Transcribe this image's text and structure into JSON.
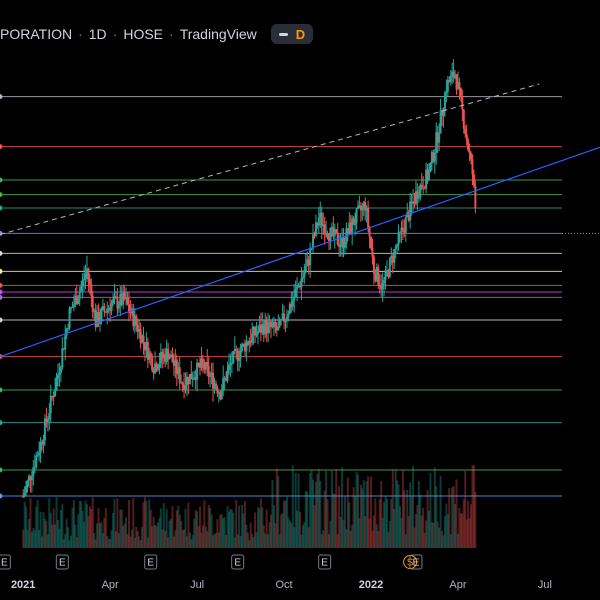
{
  "header": {
    "symbol": "PORATION",
    "interval": "1D",
    "exchange": "HOSE",
    "source": "TradingView",
    "badge_label": "D"
  },
  "colors": {
    "background": "#000000",
    "up": "#26a69a",
    "down": "#ef5350",
    "trendline": "#2962ff"
  },
  "chart_data": {
    "type": "candlestick",
    "title": "",
    "x_ticks": [
      {
        "label": "2021",
        "bold": true,
        "month_index": 0
      },
      {
        "label": "Apr",
        "bold": false,
        "month_index": 3
      },
      {
        "label": "Jul",
        "bold": false,
        "month_index": 6
      },
      {
        "label": "Oct",
        "bold": false,
        "month_index": 9
      },
      {
        "label": "2022",
        "bold": true,
        "month_index": 12
      },
      {
        "label": "Apr",
        "bold": false,
        "month_index": 15
      },
      {
        "label": "Jul",
        "bold": false,
        "month_index": 18
      }
    ],
    "x_range_months": [
      -0.8,
      19.9
    ],
    "price_range": [
      0,
      100
    ],
    "price_path": [
      [
        0,
        10
      ],
      [
        0.6,
        22
      ],
      [
        1.2,
        38
      ],
      [
        1.6,
        52
      ],
      [
        2.0,
        58
      ],
      [
        2.2,
        62
      ],
      [
        2.5,
        50
      ],
      [
        3.0,
        54
      ],
      [
        3.5,
        55
      ],
      [
        4.0,
        48
      ],
      [
        4.5,
        40
      ],
      [
        5.0,
        43
      ],
      [
        5.5,
        36
      ],
      [
        6.2,
        40
      ],
      [
        6.8,
        34
      ],
      [
        7.2,
        41
      ],
      [
        7.8,
        46
      ],
      [
        8.3,
        49
      ],
      [
        8.8,
        48
      ],
      [
        9.3,
        55
      ],
      [
        9.8,
        63
      ],
      [
        10.2,
        74
      ],
      [
        10.6,
        70
      ],
      [
        11.0,
        68
      ],
      [
        11.4,
        73
      ],
      [
        11.8,
        77
      ],
      [
        12.1,
        62
      ],
      [
        12.4,
        58
      ],
      [
        12.8,
        66
      ],
      [
        13.2,
        73
      ],
      [
        13.6,
        80
      ],
      [
        14.0,
        84
      ],
      [
        14.3,
        93
      ],
      [
        14.6,
        104
      ],
      [
        14.9,
        107
      ],
      [
        15.1,
        100
      ],
      [
        15.3,
        92
      ],
      [
        15.5,
        84
      ],
      [
        15.65,
        72
      ]
    ],
    "horizontal_levels": [
      {
        "price": 104.5,
        "color": "#b2b5be"
      },
      {
        "price": 97,
        "color": "#ef5350"
      },
      {
        "price": 92,
        "color": "#4caf50"
      },
      {
        "price": 89.8,
        "color": "#4caf50"
      },
      {
        "price": 87.8,
        "color": "#26a69a"
      },
      {
        "price": 84,
        "color": "#5b9cf6"
      },
      {
        "price": 81,
        "color": "#d1d4dc"
      },
      {
        "price": 78.3,
        "color": "#ffeb99"
      },
      {
        "price": 76.2,
        "color": "#ef5350"
      },
      {
        "price": 75.2,
        "color": "#e040fb"
      },
      {
        "price": 74.4,
        "color": "#9575cd"
      },
      {
        "price": 71,
        "color": "#d1d4dc"
      },
      {
        "price": 65.5,
        "color": "#ef5350"
      },
      {
        "price": 60.5,
        "color": "#4caf50"
      },
      {
        "price": 55.6,
        "color": "#26a69a"
      },
      {
        "price": 48.5,
        "color": "#4caf50"
      },
      {
        "price": 44.6,
        "color": "#5b9cf6"
      }
    ],
    "trendline": {
      "start": [
        -0.8,
        42
      ],
      "end": [
        19.9,
        90
      ]
    },
    "dashed_trendline": {
      "start": [
        -0.8,
        70
      ],
      "end": [
        17.8,
        104.5
      ]
    },
    "level_label_ticks": [
      "",
      "",
      "",
      "",
      "",
      "",
      "",
      "",
      "",
      "",
      "",
      "",
      "",
      "",
      "",
      "",
      ""
    ],
    "events": [
      {
        "label": "E",
        "month": -0.65
      },
      {
        "label": "E",
        "month": 1.35
      },
      {
        "label": "E",
        "month": 4.4
      },
      {
        "label": "E",
        "month": 7.4
      },
      {
        "label": "E",
        "month": 10.4
      },
      {
        "label": "S",
        "month": 13.35,
        "orange": true
      },
      {
        "label": "E",
        "month": 13.55
      }
    ]
  }
}
